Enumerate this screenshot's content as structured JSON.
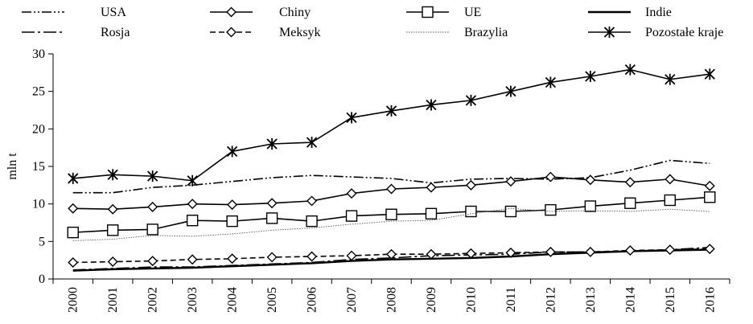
{
  "chart_data": {
    "type": "line",
    "x": [
      "2000",
      "2001",
      "2002",
      "2003",
      "2004",
      "2005",
      "2006",
      "2007",
      "2008",
      "2009",
      "2010",
      "2011",
      "2012",
      "2013",
      "2014",
      "2015",
      "2016"
    ],
    "ylabel": "mln t",
    "xlabel": "",
    "ylim": [
      0,
      30
    ],
    "yticks": [
      0,
      5,
      10,
      15,
      20,
      25,
      30
    ],
    "grid": false,
    "legend_position": "top",
    "series": [
      {
        "name": "USA",
        "style": "dash-dot-dot",
        "marker": "none",
        "color": "#000000",
        "values": [
          11.5,
          11.5,
          12.2,
          12.5,
          13.0,
          13.5,
          13.8,
          13.6,
          13.4,
          12.8,
          13.3,
          13.4,
          13.3,
          13.5,
          14.5,
          15.8,
          15.4
        ]
      },
      {
        "name": "Chiny",
        "style": "solid",
        "marker": "diamond",
        "color": "#000000",
        "values": [
          9.4,
          9.3,
          9.6,
          10.0,
          9.9,
          10.1,
          10.4,
          11.4,
          12.0,
          12.2,
          12.5,
          13.0,
          13.6,
          13.2,
          12.9,
          13.3,
          12.4
        ]
      },
      {
        "name": "UE",
        "style": "solid",
        "marker": "square",
        "color": "#000000",
        "values": [
          6.2,
          6.5,
          6.6,
          7.8,
          7.7,
          8.1,
          7.7,
          8.4,
          8.6,
          8.7,
          9.0,
          9.0,
          9.2,
          9.7,
          10.1,
          10.5,
          10.9
        ]
      },
      {
        "name": "Indie",
        "style": "solid-bold",
        "marker": "none",
        "color": "#000000",
        "values": [
          1.1,
          1.3,
          1.4,
          1.5,
          1.7,
          1.9,
          2.1,
          2.4,
          2.6,
          2.7,
          2.8,
          3.0,
          3.3,
          3.5,
          3.7,
          3.8,
          3.9
        ]
      },
      {
        "name": "Rosja",
        "style": "long-dash-dot",
        "marker": "none",
        "color": "#000000",
        "values": [
          1.2,
          1.4,
          1.6,
          1.6,
          1.8,
          2.0,
          2.2,
          2.6,
          2.8,
          3.1,
          3.2,
          3.3,
          3.6,
          3.6,
          3.7,
          3.9,
          4.2
        ]
      },
      {
        "name": "Meksyk",
        "style": "dashed",
        "marker": "diamond",
        "color": "#000000",
        "values": [
          2.2,
          2.3,
          2.4,
          2.6,
          2.7,
          2.9,
          3.0,
          3.1,
          3.3,
          3.3,
          3.4,
          3.5,
          3.6,
          3.6,
          3.8,
          3.9,
          4.0
        ]
      },
      {
        "name": "Brazylia",
        "style": "dotted-thin",
        "marker": "none",
        "color": "#555555",
        "values": [
          5.1,
          5.3,
          5.8,
          5.7,
          6.0,
          6.5,
          6.8,
          7.3,
          7.7,
          7.8,
          8.7,
          9.4,
          9.0,
          9.1,
          9.0,
          9.3,
          9.0
        ]
      },
      {
        "name": "Pozostałe kraje",
        "style": "solid",
        "marker": "star",
        "color": "#000000",
        "values": [
          13.4,
          13.9,
          13.7,
          13.1,
          17.0,
          18.0,
          18.2,
          21.5,
          22.4,
          23.2,
          23.8,
          25.0,
          26.2,
          27.0,
          27.9,
          26.6,
          27.3
        ]
      }
    ]
  }
}
